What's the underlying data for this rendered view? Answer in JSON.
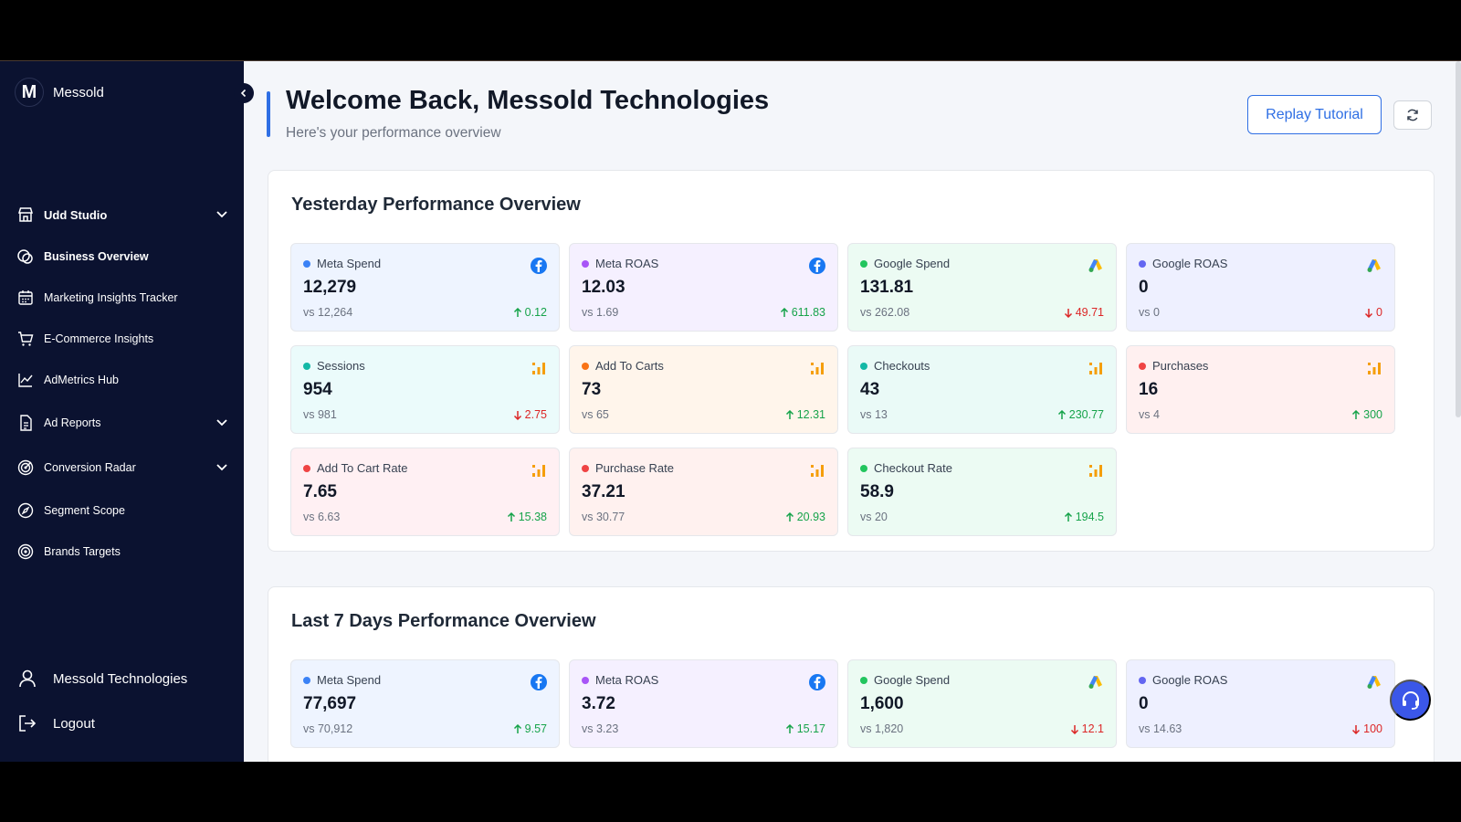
{
  "sidebar": {
    "brand": "Messold",
    "logo_letter": "M",
    "store": "Udd Studio",
    "items": [
      {
        "label": "Business Overview",
        "icon": "overview-icon"
      },
      {
        "label": "Marketing Insights Tracker",
        "icon": "calendar-icon"
      },
      {
        "label": "E-Commerce Insights",
        "icon": "cart-icon"
      },
      {
        "label": "AdMetrics Hub",
        "icon": "line-chart-icon"
      },
      {
        "label": "Ad Reports",
        "icon": "report-icon"
      },
      {
        "label": "Conversion Radar",
        "icon": "radar-icon"
      },
      {
        "label": "Segment Scope",
        "icon": "compass-icon"
      },
      {
        "label": "Brands Targets",
        "icon": "target-icon"
      }
    ],
    "user": "Messold Technologies",
    "logout": "Logout"
  },
  "header": {
    "title": "Welcome Back, Messold Technologies",
    "subtitle": "Here's your performance overview",
    "replay_label": "Replay Tutorial"
  },
  "yesterday": {
    "title": "Yesterday Performance Overview",
    "cards": [
      {
        "label": "Meta Spend",
        "value": "12,279",
        "vs": "vs 12,264",
        "change": "0.12",
        "dir": "up",
        "icon": "facebook-icon",
        "dot": "#3b82f6"
      },
      {
        "label": "Meta ROAS",
        "value": "12.03",
        "vs": "vs 1.69",
        "change": "611.83",
        "dir": "up",
        "icon": "facebook-icon",
        "dot": "#a855f7"
      },
      {
        "label": "Google Spend",
        "value": "131.81",
        "vs": "vs 262.08",
        "change": "49.71",
        "dir": "down",
        "icon": "google-ads-icon",
        "dot": "#22c55e"
      },
      {
        "label": "Google ROAS",
        "value": "0",
        "vs": "vs 0",
        "change": "0",
        "dir": "down",
        "icon": "google-ads-icon",
        "dot": "#6366f1"
      },
      {
        "label": "Sessions",
        "value": "954",
        "vs": "vs 981",
        "change": "2.75",
        "dir": "down",
        "icon": "bar-chart-icon",
        "dot": "#14b8a6"
      },
      {
        "label": "Add To Carts",
        "value": "73",
        "vs": "vs 65",
        "change": "12.31",
        "dir": "up",
        "icon": "bar-chart-icon",
        "dot": "#f97316"
      },
      {
        "label": "Checkouts",
        "value": "43",
        "vs": "vs 13",
        "change": "230.77",
        "dir": "up",
        "icon": "bar-chart-icon",
        "dot": "#14b8a6"
      },
      {
        "label": "Purchases",
        "value": "16",
        "vs": "vs 4",
        "change": "300",
        "dir": "up",
        "icon": "bar-chart-icon",
        "dot": "#ef4444"
      },
      {
        "label": "Add To Cart Rate",
        "value": "7.65",
        "vs": "vs 6.63",
        "change": "15.38",
        "dir": "up",
        "icon": "bar-chart-icon",
        "dot": "#ef4444"
      },
      {
        "label": "Purchase Rate",
        "value": "37.21",
        "vs": "vs 30.77",
        "change": "20.93",
        "dir": "up",
        "icon": "bar-chart-icon",
        "dot": "#ef4444"
      },
      {
        "label": "Checkout Rate",
        "value": "58.9",
        "vs": "vs 20",
        "change": "194.5",
        "dir": "up",
        "icon": "bar-chart-icon",
        "dot": "#22c55e"
      }
    ]
  },
  "last7": {
    "title": "Last 7 Days Performance Overview",
    "cards": [
      {
        "label": "Meta Spend",
        "value": "77,697",
        "vs": "vs 70,912",
        "change": "9.57",
        "dir": "up",
        "icon": "facebook-icon",
        "dot": "#3b82f6"
      },
      {
        "label": "Meta ROAS",
        "value": "3.72",
        "vs": "vs 3.23",
        "change": "15.17",
        "dir": "up",
        "icon": "facebook-icon",
        "dot": "#a855f7"
      },
      {
        "label": "Google Spend",
        "value": "1,600",
        "vs": "vs 1,820",
        "change": "12.1",
        "dir": "down",
        "icon": "google-ads-icon",
        "dot": "#22c55e"
      },
      {
        "label": "Google ROAS",
        "value": "0",
        "vs": "vs 14.63",
        "change": "100",
        "dir": "down",
        "icon": "google-ads-icon",
        "dot": "#6366f1"
      }
    ]
  },
  "colors": {
    "accent": "#2f6fe4",
    "sidebar": "#0b1230",
    "up": "#16a34a",
    "down": "#dc2626"
  }
}
